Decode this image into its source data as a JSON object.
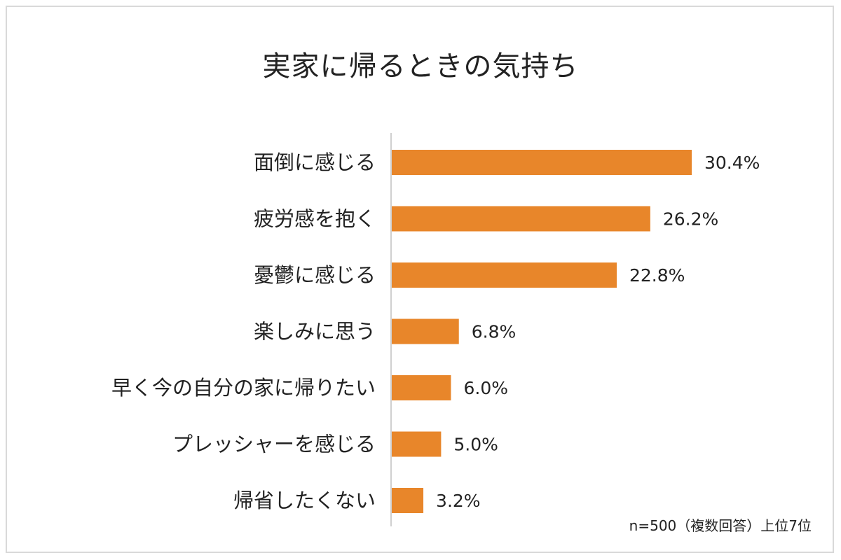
{
  "chart_data": {
    "type": "bar",
    "orientation": "horizontal",
    "title": "実家に帰るときの気持ち",
    "categories": [
      "面倒に感じる",
      "疲労感を抱く",
      "憂鬱に感じる",
      "楽しみに思う",
      "早く今の自分の家に帰りたい",
      "プレッシャーを感じる",
      "帰省したくない"
    ],
    "values": [
      30.4,
      26.2,
      22.8,
      6.8,
      6.0,
      5.0,
      3.2
    ],
    "value_labels": [
      "30.4%",
      "26.2%",
      "22.8%",
      "6.8%",
      "6.0%",
      "5.0%",
      "3.2%"
    ],
    "xlim": [
      0,
      30.4
    ],
    "grid": false,
    "legend": "none",
    "bar_color": "#E8862A",
    "note": "n=500（複数回答）上位7位"
  }
}
